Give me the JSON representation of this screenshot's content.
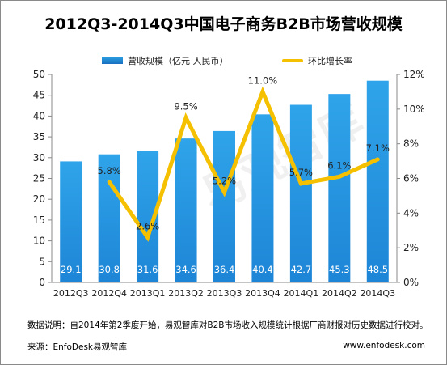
{
  "chart_data": {
    "type": "bar",
    "title": "2012Q3-2014Q3中国电子商务B2B市场营收规模",
    "categories": [
      "2012Q3",
      "2012Q4",
      "2013Q1",
      "2013Q2",
      "2013Q3",
      "2013Q4",
      "2014Q1",
      "2014Q2",
      "2014Q3"
    ],
    "series": [
      {
        "name": "营收规模（亿元 人民币）",
        "type": "bar",
        "axis": "left",
        "values": [
          29.1,
          30.8,
          31.6,
          34.6,
          36.4,
          40.4,
          42.7,
          45.3,
          48.5
        ],
        "labels": [
          "29.1",
          "30.8",
          "31.6",
          "34.6",
          "36.4",
          "40.4",
          "42.7",
          "45.3",
          "48.5"
        ]
      },
      {
        "name": "环比增长率",
        "type": "line",
        "axis": "right",
        "values": [
          null,
          5.8,
          2.6,
          9.5,
          5.2,
          11.0,
          5.7,
          6.1,
          7.1
        ],
        "labels": [
          "",
          "5.8%",
          "2.6%",
          "9.5%",
          "5.2%",
          "11.0%",
          "5.7%",
          "6.1%",
          "7.1%"
        ]
      }
    ],
    "ylim_left": [
      0,
      50
    ],
    "yticks_left": [
      "0",
      "5",
      "10",
      "15",
      "20",
      "25",
      "30",
      "35",
      "40",
      "45",
      "50"
    ],
    "ylim_right": [
      0,
      12
    ],
    "yticks_right": [
      "0%",
      "2%",
      "4%",
      "6%",
      "8%",
      "10%",
      "12%"
    ],
    "legend_position": "top-center",
    "grid": false,
    "colors": {
      "bar": "#1e85d6",
      "line": "#f5c000"
    }
  },
  "footnote": "数据说明：自2014年第2季度开始，易观智库对B2B市场收入规模统计根据厂商财报对历史数据进行校对。",
  "source": "来源：EnfoDesk易观智库",
  "website": "www.enfodesk.com",
  "watermark": "易观智库"
}
